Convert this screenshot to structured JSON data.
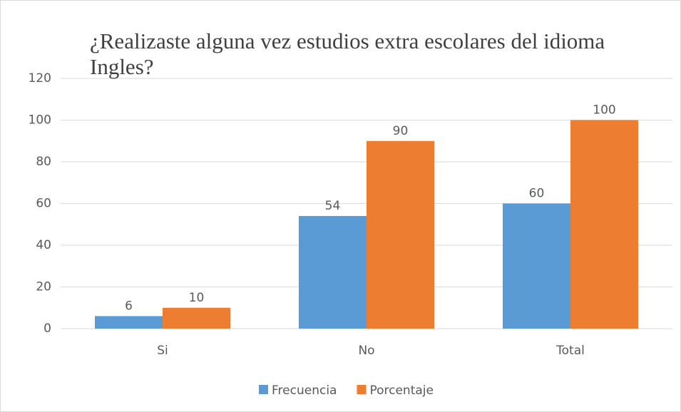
{
  "chart_data": {
    "type": "bar",
    "title": "¿Realizaste alguna vez estudios extra escolares del idioma Ingles?",
    "categories": [
      "Si",
      "No",
      "Total"
    ],
    "series": [
      {
        "name": "Frecuencia",
        "color": "#5b9bd5",
        "values": [
          6,
          54,
          60
        ]
      },
      {
        "name": "Porcentaje",
        "color": "#ed7d31",
        "values": [
          10,
          90,
          100
        ]
      }
    ],
    "ylim": [
      0,
      120
    ],
    "yticks": [
      0,
      20,
      40,
      60,
      80,
      100,
      120
    ],
    "grid": true,
    "legend": "bottom"
  }
}
